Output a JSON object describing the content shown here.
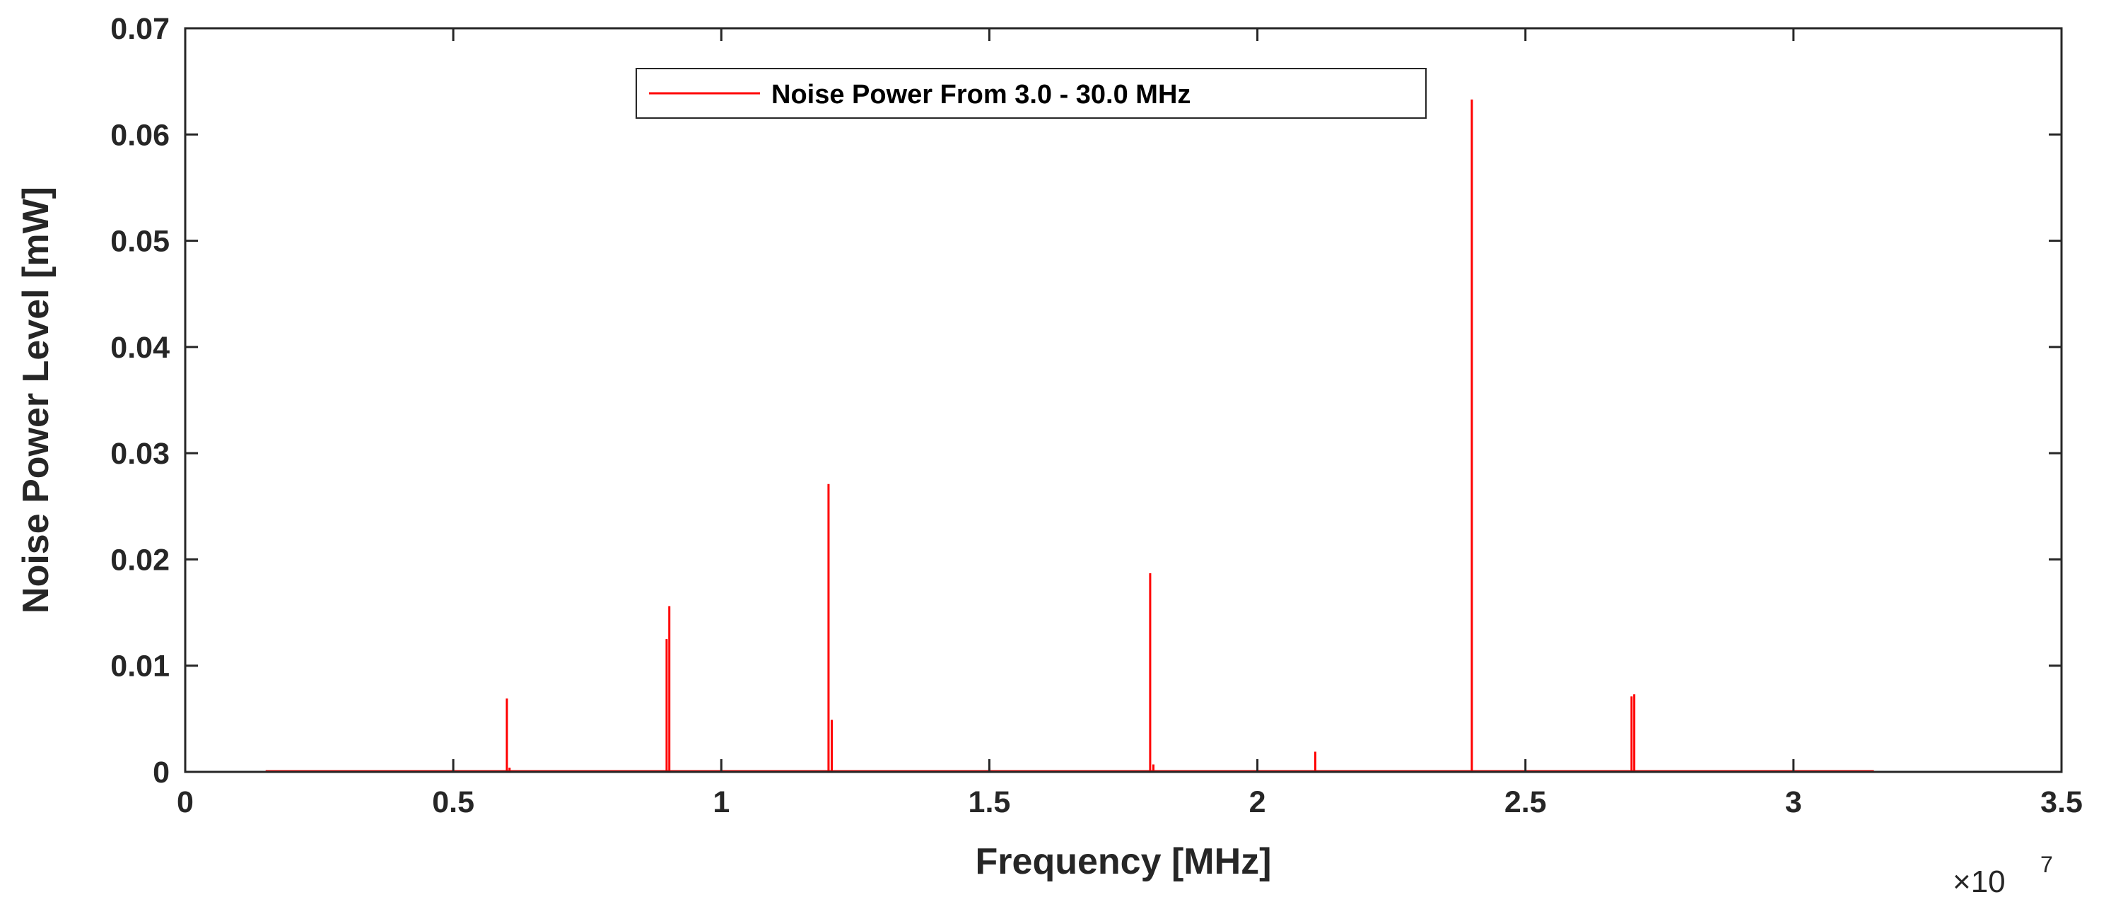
{
  "chart_data": {
    "type": "line",
    "xlabel": "Frequency [MHz]",
    "ylabel": "Noise Power Level [mW]",
    "xlim": [
      0,
      35000000
    ],
    "ylim": [
      0,
      0.07
    ],
    "x_exponent_base": "×10",
    "x_exponent_power": "7",
    "xticks": [
      0,
      5000000,
      10000000,
      15000000,
      20000000,
      25000000,
      30000000,
      35000000
    ],
    "xtick_labels": [
      "0",
      "0.5",
      "1",
      "1.5",
      "2",
      "2.5",
      "3",
      "3.5"
    ],
    "yticks": [
      0,
      0.01,
      0.02,
      0.03,
      0.04,
      0.05,
      0.06,
      0.07
    ],
    "ytick_labels": [
      "0",
      "0.01",
      "0.02",
      "0.03",
      "0.04",
      "0.05",
      "0.06",
      "0.07"
    ],
    "grid": false,
    "legend_position": "top-center",
    "series": [
      {
        "name": "Noise Power From 3.0 - 30.0 MHz",
        "color": "#ff0000",
        "baseline_range": [
          1500000,
          31500000
        ],
        "peaks": [
          {
            "x": 6000000,
            "y": 0.0069
          },
          {
            "x": 6050000,
            "y": 0.0004
          },
          {
            "x": 8980000,
            "y": 0.0125
          },
          {
            "x": 9030000,
            "y": 0.0156
          },
          {
            "x": 12000000,
            "y": 0.0271
          },
          {
            "x": 12060000,
            "y": 0.0049
          },
          {
            "x": 15000000,
            "y": 0.0004
          },
          {
            "x": 18000000,
            "y": 0.0187
          },
          {
            "x": 18060000,
            "y": 0.0007
          },
          {
            "x": 21080000,
            "y": 0.0019
          },
          {
            "x": 24000000,
            "y": 0.0633
          },
          {
            "x": 26980000,
            "y": 0.0071
          },
          {
            "x": 27030000,
            "y": 0.0073
          }
        ]
      }
    ]
  }
}
